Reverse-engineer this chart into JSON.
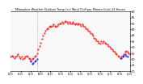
{
  "title": "Milwaukee Weather Outdoor Temp (vs) Wind Chill per Minute (Last 24 Hours)",
  "bg_color": "#ffffff",
  "plot_bg": "#f8f8f8",
  "y_min": 10,
  "y_max": 60,
  "y_ticks": [
    10,
    15,
    20,
    25,
    30,
    35,
    40,
    45,
    50,
    55,
    60
  ],
  "vline_x": 0.22,
  "red_x": [
    0.0,
    0.01,
    0.02,
    0.03,
    0.04,
    0.05,
    0.06,
    0.07,
    0.08,
    0.09,
    0.1,
    0.11,
    0.12,
    0.13,
    0.14,
    0.15,
    0.16,
    0.17,
    0.18,
    0.19,
    0.2,
    0.21,
    0.22,
    0.23,
    0.24,
    0.25,
    0.26,
    0.27,
    0.28,
    0.29,
    0.3,
    0.31,
    0.32,
    0.33,
    0.34,
    0.35,
    0.36,
    0.37,
    0.38,
    0.39,
    0.4,
    0.41,
    0.42,
    0.43,
    0.44,
    0.45,
    0.46,
    0.47,
    0.48,
    0.49,
    0.5,
    0.51,
    0.52,
    0.53,
    0.54,
    0.55,
    0.56,
    0.57,
    0.58,
    0.59,
    0.6,
    0.61,
    0.62,
    0.63,
    0.64,
    0.65,
    0.66,
    0.67,
    0.68,
    0.69,
    0.7,
    0.71,
    0.72,
    0.73,
    0.74,
    0.75,
    0.76,
    0.77,
    0.78,
    0.79,
    0.8,
    0.81,
    0.82,
    0.83,
    0.84,
    0.85,
    0.86,
    0.87,
    0.88,
    0.89,
    0.9,
    0.91,
    0.92,
    0.93,
    0.94,
    0.95,
    0.96,
    0.97,
    0.98,
    0.99,
    1.0
  ],
  "red_y": [
    22,
    23,
    22,
    21,
    22,
    23,
    24,
    22,
    21,
    22,
    20,
    21,
    22,
    23,
    22,
    21,
    20,
    19,
    20,
    21,
    22,
    23,
    25,
    28,
    31,
    34,
    37,
    40,
    42,
    44,
    45,
    46,
    47,
    48,
    47,
    48,
    49,
    48,
    47,
    48,
    49,
    50,
    50,
    51,
    50,
    51,
    52,
    51,
    50,
    51,
    50,
    50,
    51,
    50,
    49,
    50,
    49,
    50,
    49,
    48,
    49,
    48,
    47,
    46,
    45,
    44,
    43,
    42,
    41,
    40,
    38,
    37,
    36,
    35,
    34,
    33,
    35,
    34,
    35,
    34,
    33,
    32,
    31,
    30,
    29,
    28,
    27,
    26,
    25,
    24,
    23,
    22,
    21,
    22,
    23,
    24,
    26,
    27,
    26,
    25,
    24
  ],
  "blue_x": [
    0.17,
    0.18,
    0.19,
    0.2,
    0.21,
    0.22,
    0.93,
    0.94,
    0.95,
    0.96,
    0.97,
    0.98
  ],
  "blue_y": [
    18,
    16,
    17,
    18,
    19,
    20,
    21,
    22,
    23,
    24,
    23,
    22
  ],
  "x_tick_positions": [
    0.0,
    0.083,
    0.167,
    0.25,
    0.333,
    0.417,
    0.5,
    0.583,
    0.667,
    0.75,
    0.833,
    0.917,
    1.0
  ],
  "x_tick_labels": [
    "",
    "",
    "",
    "",
    "",
    "",
    "",
    "",
    "",
    "",
    "",
    "",
    ""
  ]
}
